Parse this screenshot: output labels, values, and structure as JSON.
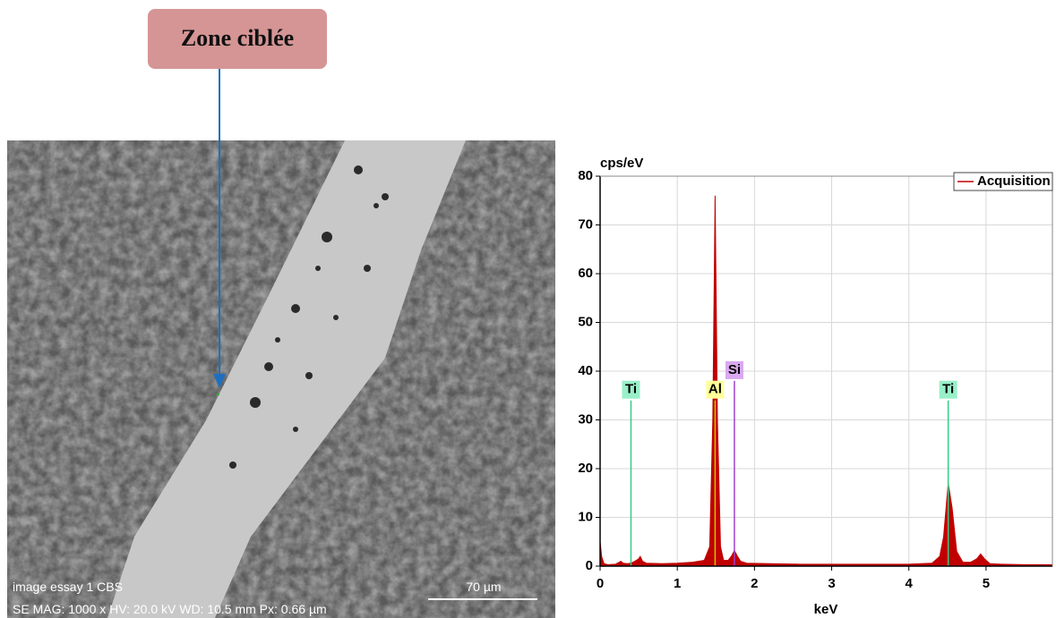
{
  "annotation": {
    "label": "Zone ciblée"
  },
  "sem_image": {
    "caption": "image essay 1  CBS",
    "scale_bar": "70 µm",
    "info": "SE  MAG: 1000 x  HV: 20.0 kV  WD: 10.5 mm  Px: 0.66 µm"
  },
  "chart_data": {
    "type": "area",
    "y_label": "cps/eV",
    "x_label": "keV",
    "x": [
      0,
      0.02,
      0.05,
      0.1,
      0.2,
      0.27,
      0.3,
      0.35,
      0.4,
      0.45,
      0.5,
      0.52,
      0.55,
      0.6,
      0.8,
      1.0,
      1.2,
      1.35,
      1.42,
      1.46,
      1.49,
      1.52,
      1.56,
      1.6,
      1.66,
      1.7,
      1.74,
      1.78,
      1.82,
      1.9,
      2.2,
      2.6,
      3.0,
      3.5,
      4.0,
      4.3,
      4.4,
      4.45,
      4.51,
      4.56,
      4.62,
      4.7,
      4.8,
      4.88,
      4.93,
      4.98,
      5.05,
      5.2,
      5.5,
      5.86
    ],
    "series": [
      {
        "name": "Acquisition",
        "color": "#c00000",
        "values": [
          5,
          2,
          0.5,
          0.3,
          0.4,
          1,
          0.6,
          0.5,
          0.6,
          1,
          1.5,
          2,
          1,
          0.6,
          0.5,
          0.6,
          0.8,
          1.2,
          4,
          30,
          76,
          30,
          4,
          1.2,
          1.2,
          2,
          3.2,
          2,
          1,
          0.6,
          0.5,
          0.4,
          0.4,
          0.4,
          0.4,
          0.6,
          2,
          6,
          17,
          12,
          3,
          0.8,
          0.8,
          1.5,
          2.5,
          1.5,
          0.5,
          0.4,
          0.3,
          0.3
        ]
      }
    ],
    "markers": [
      {
        "label": "Ti",
        "x": 0.4,
        "y": 34,
        "color": "#33cc88",
        "background": "#99f0c8"
      },
      {
        "label": "Al",
        "x": 1.49,
        "y": 34,
        "color": "#c8c800",
        "background": "#ffff99"
      },
      {
        "label": "Si",
        "x": 1.74,
        "y": 38,
        "color": "#a040d0",
        "background": "#d9a8f0"
      },
      {
        "label": "Ti",
        "x": 4.51,
        "y": 34,
        "color": "#33cc88",
        "background": "#99f0c8"
      }
    ],
    "xlim": [
      0,
      5.86
    ],
    "xticks": [
      0,
      1,
      2,
      3,
      4,
      5
    ],
    "ylim": [
      0,
      80
    ],
    "yticks": [
      0,
      10,
      20,
      30,
      40,
      50,
      60,
      70,
      80
    ],
    "grid": true,
    "legend": "upper right"
  }
}
